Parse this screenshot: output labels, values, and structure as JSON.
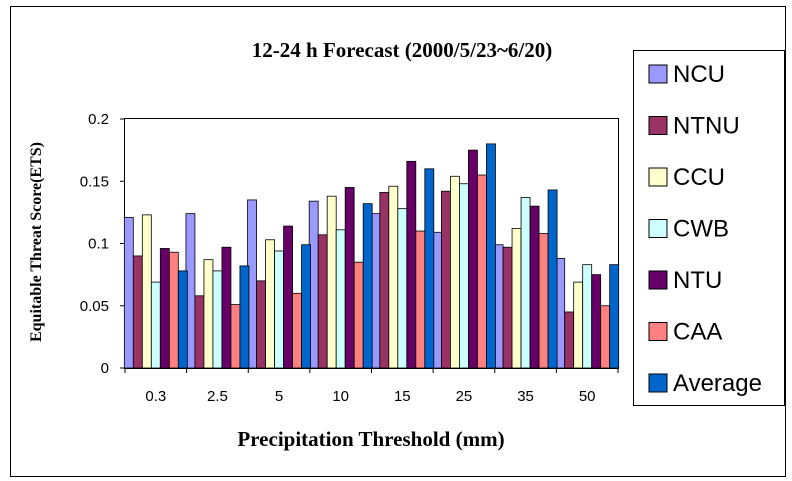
{
  "chart_data": {
    "type": "bar",
    "title": "12-24 h Forecast (2000/5/23~6/20)",
    "xlabel": "Precipitation Threshold (mm)",
    "ylabel": "Equitable Threat Score(ETS)",
    "categories": [
      "0.3",
      "2.5",
      "5",
      "10",
      "15",
      "25",
      "35",
      "50"
    ],
    "ylim": [
      0,
      0.2
    ],
    "yticks": [
      "0",
      "0.05",
      "0.1",
      "0.15",
      "0.2"
    ],
    "ytick_values": [
      0,
      0.05,
      0.1,
      0.15,
      0.2
    ],
    "grid": false,
    "legend_position": "right",
    "series": [
      {
        "name": "NCU",
        "color": "#9999ff",
        "values": [
          0.121,
          0.124,
          0.135,
          0.134,
          0.124,
          0.109,
          0.099,
          0.088
        ]
      },
      {
        "name": "NTNU",
        "color": "#993366",
        "values": [
          0.09,
          0.058,
          0.07,
          0.107,
          0.141,
          0.142,
          0.097,
          0.045
        ]
      },
      {
        "name": "CCU",
        "color": "#ffffcc",
        "values": [
          0.123,
          0.087,
          0.103,
          0.138,
          0.146,
          0.154,
          0.112,
          0.069
        ]
      },
      {
        "name": "CWB",
        "color": "#ccffff",
        "values": [
          0.069,
          0.078,
          0.094,
          0.111,
          0.128,
          0.148,
          0.137,
          0.083
        ]
      },
      {
        "name": "NTU",
        "color": "#660066",
        "values": [
          0.096,
          0.097,
          0.114,
          0.145,
          0.166,
          0.175,
          0.13,
          0.075
        ]
      },
      {
        "name": "CAA",
        "color": "#ff8080",
        "values": [
          0.093,
          0.051,
          0.06,
          0.085,
          0.11,
          0.155,
          0.108,
          0.05
        ]
      },
      {
        "name": "Average",
        "color": "#0066cc",
        "values": [
          0.078,
          0.082,
          0.099,
          0.132,
          0.16,
          0.18,
          0.143,
          0.083
        ]
      }
    ]
  }
}
